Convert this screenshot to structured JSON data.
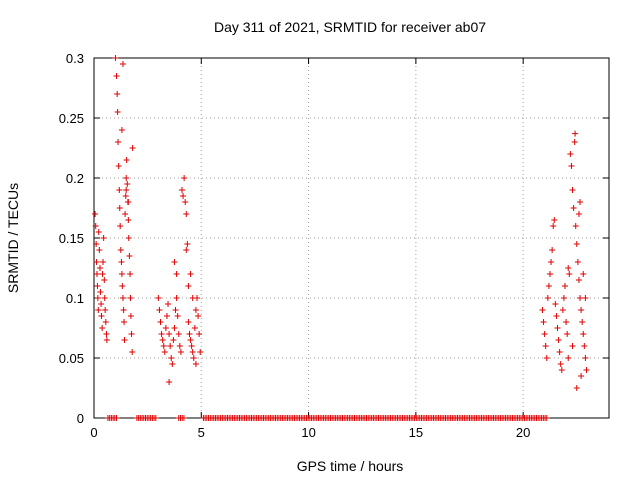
{
  "chart_data": {
    "type": "scatter",
    "title": "Day 311 of 2021, SRMTID for receiver ab07",
    "xlabel": "GPS time / hours",
    "ylabel": "SRMTID / TECUs",
    "xlim": [
      0,
      24
    ],
    "ylim": [
      0,
      0.3
    ],
    "xticks": [
      0,
      5,
      10,
      15,
      20
    ],
    "xtick_labels": [
      "0",
      "5",
      "10",
      "15",
      "20"
    ],
    "yticks": [
      0,
      0.05,
      0.1,
      0.15,
      0.2,
      0.25,
      0.3
    ],
    "ytick_labels": [
      "0",
      "0.05",
      "0.1",
      "0.15",
      "0.2",
      "0.25",
      "0.3"
    ],
    "grid": true,
    "marker": "+",
    "series": [
      {
        "name": "SRMTID",
        "color": "#e00000",
        "points": [
          [
            0.05,
            0.17
          ],
          [
            0.08,
            0.16
          ],
          [
            0.1,
            0.145
          ],
          [
            0.12,
            0.13
          ],
          [
            0.14,
            0.12
          ],
          [
            0.16,
            0.11
          ],
          [
            0.18,
            0.1
          ],
          [
            0.2,
            0.09
          ],
          [
            0.22,
            0.155
          ],
          [
            0.25,
            0.14
          ],
          [
            0.28,
            0.125
          ],
          [
            0.3,
            0.105
          ],
          [
            0.33,
            0.095
          ],
          [
            0.35,
            0.085
          ],
          [
            0.38,
            0.075
          ],
          [
            0.4,
            0.12
          ],
          [
            0.42,
            0.13
          ],
          [
            0.45,
            0.15
          ],
          [
            0.48,
            0.115
          ],
          [
            0.5,
            0.1
          ],
          [
            0.52,
            0.09
          ],
          [
            0.55,
            0.08
          ],
          [
            0.58,
            0.07
          ],
          [
            0.6,
            0.065
          ],
          [
            1.0,
            0.3
          ],
          [
            1.05,
            0.285
          ],
          [
            1.08,
            0.27
          ],
          [
            1.1,
            0.255
          ],
          [
            1.12,
            0.23
          ],
          [
            1.15,
            0.21
          ],
          [
            1.18,
            0.19
          ],
          [
            1.2,
            0.175
          ],
          [
            1.22,
            0.16
          ],
          [
            1.25,
            0.14
          ],
          [
            1.28,
            0.13
          ],
          [
            1.3,
            0.12
          ],
          [
            1.32,
            0.11
          ],
          [
            1.35,
            0.1
          ],
          [
            1.38,
            0.09
          ],
          [
            1.4,
            0.08
          ],
          [
            1.42,
            0.065
          ],
          [
            1.45,
            0.17
          ],
          [
            1.48,
            0.185
          ],
          [
            1.5,
            0.2
          ],
          [
            1.52,
            0.215
          ],
          [
            1.55,
            0.195
          ],
          [
            1.58,
            0.18
          ],
          [
            1.6,
            0.165
          ],
          [
            1.62,
            0.15
          ],
          [
            1.65,
            0.135
          ],
          [
            1.68,
            0.12
          ],
          [
            1.7,
            0.1
          ],
          [
            1.72,
            0.085
          ],
          [
            1.75,
            0.07
          ],
          [
            1.78,
            0.055
          ],
          [
            1.8,
            0.225
          ],
          [
            1.3,
            0.24
          ],
          [
            1.35,
            0.295
          ],
          [
            1.5,
            0.19
          ],
          [
            1.6,
            0.18
          ],
          [
            3.0,
            0.1
          ],
          [
            3.05,
            0.09
          ],
          [
            3.1,
            0.08
          ],
          [
            3.15,
            0.07
          ],
          [
            3.2,
            0.065
          ],
          [
            3.25,
            0.06
          ],
          [
            3.3,
            0.055
          ],
          [
            3.35,
            0.075
          ],
          [
            3.4,
            0.085
          ],
          [
            3.45,
            0.095
          ],
          [
            3.5,
            0.07
          ],
          [
            3.55,
            0.06
          ],
          [
            3.6,
            0.05
          ],
          [
            3.65,
            0.045
          ],
          [
            3.5,
            0.03
          ],
          [
            3.7,
            0.065
          ],
          [
            3.75,
            0.075
          ],
          [
            3.8,
            0.09
          ],
          [
            3.85,
            0.1
          ],
          [
            3.9,
            0.085
          ],
          [
            3.95,
            0.07
          ],
          [
            4.0,
            0.06
          ],
          [
            3.75,
            0.13
          ],
          [
            3.85,
            0.12
          ],
          [
            4.05,
            0.055
          ],
          [
            4.1,
            0.19
          ],
          [
            4.15,
            0.185
          ],
          [
            4.2,
            0.2
          ],
          [
            4.25,
            0.18
          ],
          [
            4.3,
            0.17
          ],
          [
            4.35,
            0.145
          ],
          [
            4.3,
            0.14
          ],
          [
            4.4,
            0.08
          ],
          [
            4.45,
            0.07
          ],
          [
            4.5,
            0.065
          ],
          [
            4.55,
            0.06
          ],
          [
            4.6,
            0.055
          ],
          [
            4.65,
            0.05
          ],
          [
            4.7,
            0.075
          ],
          [
            4.75,
            0.09
          ],
          [
            4.8,
            0.1
          ],
          [
            4.85,
            0.085
          ],
          [
            4.9,
            0.07
          ],
          [
            4.95,
            0.055
          ],
          [
            4.4,
            0.11
          ],
          [
            4.5,
            0.12
          ],
          [
            4.6,
            0.1
          ],
          [
            4.75,
            0.045
          ],
          [
            20.9,
            0.09
          ],
          [
            20.95,
            0.08
          ],
          [
            21.0,
            0.07
          ],
          [
            21.05,
            0.06
          ],
          [
            21.1,
            0.05
          ],
          [
            21.15,
            0.1
          ],
          [
            21.2,
            0.11
          ],
          [
            21.25,
            0.12
          ],
          [
            21.3,
            0.13
          ],
          [
            21.35,
            0.14
          ],
          [
            21.4,
            0.16
          ],
          [
            21.45,
            0.165
          ],
          [
            21.5,
            0.095
          ],
          [
            21.55,
            0.085
          ],
          [
            21.6,
            0.075
          ],
          [
            21.65,
            0.065
          ],
          [
            21.7,
            0.055
          ],
          [
            21.75,
            0.045
          ],
          [
            21.8,
            0.04
          ],
          [
            21.85,
            0.09
          ],
          [
            21.9,
            0.1
          ],
          [
            21.95,
            0.11
          ],
          [
            22.0,
            0.08
          ],
          [
            22.05,
            0.07
          ],
          [
            22.1,
            0.125
          ],
          [
            22.15,
            0.12
          ],
          [
            22.2,
            0.22
          ],
          [
            22.25,
            0.21
          ],
          [
            22.3,
            0.19
          ],
          [
            22.35,
            0.175
          ],
          [
            22.4,
            0.23
          ],
          [
            22.42,
            0.237
          ],
          [
            22.45,
            0.16
          ],
          [
            22.5,
            0.145
          ],
          [
            22.55,
            0.13
          ],
          [
            22.6,
            0.115
          ],
          [
            22.65,
            0.1
          ],
          [
            22.7,
            0.09
          ],
          [
            22.75,
            0.08
          ],
          [
            22.8,
            0.07
          ],
          [
            22.85,
            0.06
          ],
          [
            22.9,
            0.05
          ],
          [
            22.95,
            0.04
          ],
          [
            22.7,
            0.035
          ],
          [
            22.5,
            0.025
          ],
          [
            22.6,
            0.17
          ],
          [
            22.65,
            0.18
          ],
          [
            22.8,
            0.12
          ],
          [
            22.9,
            0.1
          ],
          [
            22.3,
            0.06
          ],
          [
            22.1,
            0.05
          ]
        ]
      }
    ],
    "zero_segments": [
      [
        0.65,
        1.05
      ],
      [
        2.0,
        2.95
      ],
      [
        3.95,
        4.25
      ],
      [
        5.1,
        21.1
      ]
    ]
  }
}
